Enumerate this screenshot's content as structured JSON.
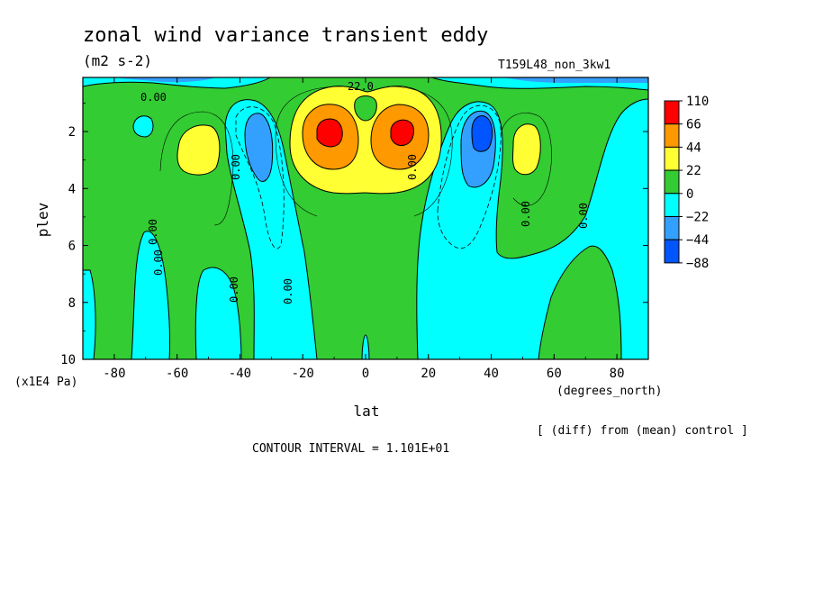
{
  "chart_data": {
    "type": "contour",
    "title": "zonal wind variance transient eddy",
    "units": "(m2 s-2)",
    "run_label": "T159L48_non_3kw1",
    "xlabel": "lat",
    "xunits": "(degrees_north)",
    "ylabel": "plev",
    "yunits": "(x1E4 Pa)",
    "xlim": [
      -90,
      90
    ],
    "ylim": [
      10,
      0.1
    ],
    "xticks": [
      "-80",
      "-60",
      "-40",
      "-20",
      "0",
      "20",
      "40",
      "60",
      "80"
    ],
    "yticks": [
      "2",
      "4",
      "6",
      "8",
      "10"
    ],
    "xtick_values": [
      -80,
      -60,
      -40,
      -20,
      0,
      20,
      40,
      60,
      80
    ],
    "ytick_values": [
      2,
      4,
      6,
      8,
      10
    ],
    "contour_interval_text": "CONTOUR INTERVAL = 1.101E+01",
    "note": "[ (diff) from (mean) control ]",
    "colorbar": {
      "labels": [
        "110",
        "66",
        "44",
        "22",
        "0",
        "−22",
        "−44",
        "−88"
      ],
      "colors": [
        "#ff0000",
        "#ff9900",
        "#ffff33",
        "#33cc33",
        "#00ffff",
        "#33a0ff",
        "#0055ff"
      ]
    },
    "contour_labels": [
      "0.00",
      "0.00",
      "0.00",
      "0.00",
      "0.00",
      "0.00",
      "0.00",
      "0.00",
      "0.00",
      "22.0"
    ],
    "features": [
      {
        "lat": -12,
        "plev": 2.0,
        "value": 110
      },
      {
        "lat": 12,
        "plev": 2.0,
        "value": 110
      },
      {
        "lat": -35,
        "plev": 2.5,
        "value": -44
      },
      {
        "lat": 37,
        "plev": 2.0,
        "value": -88
      },
      {
        "lat": -52,
        "plev": 2.5,
        "value": 22
      },
      {
        "lat": 50,
        "plev": 2.5,
        "value": 22
      }
    ]
  }
}
